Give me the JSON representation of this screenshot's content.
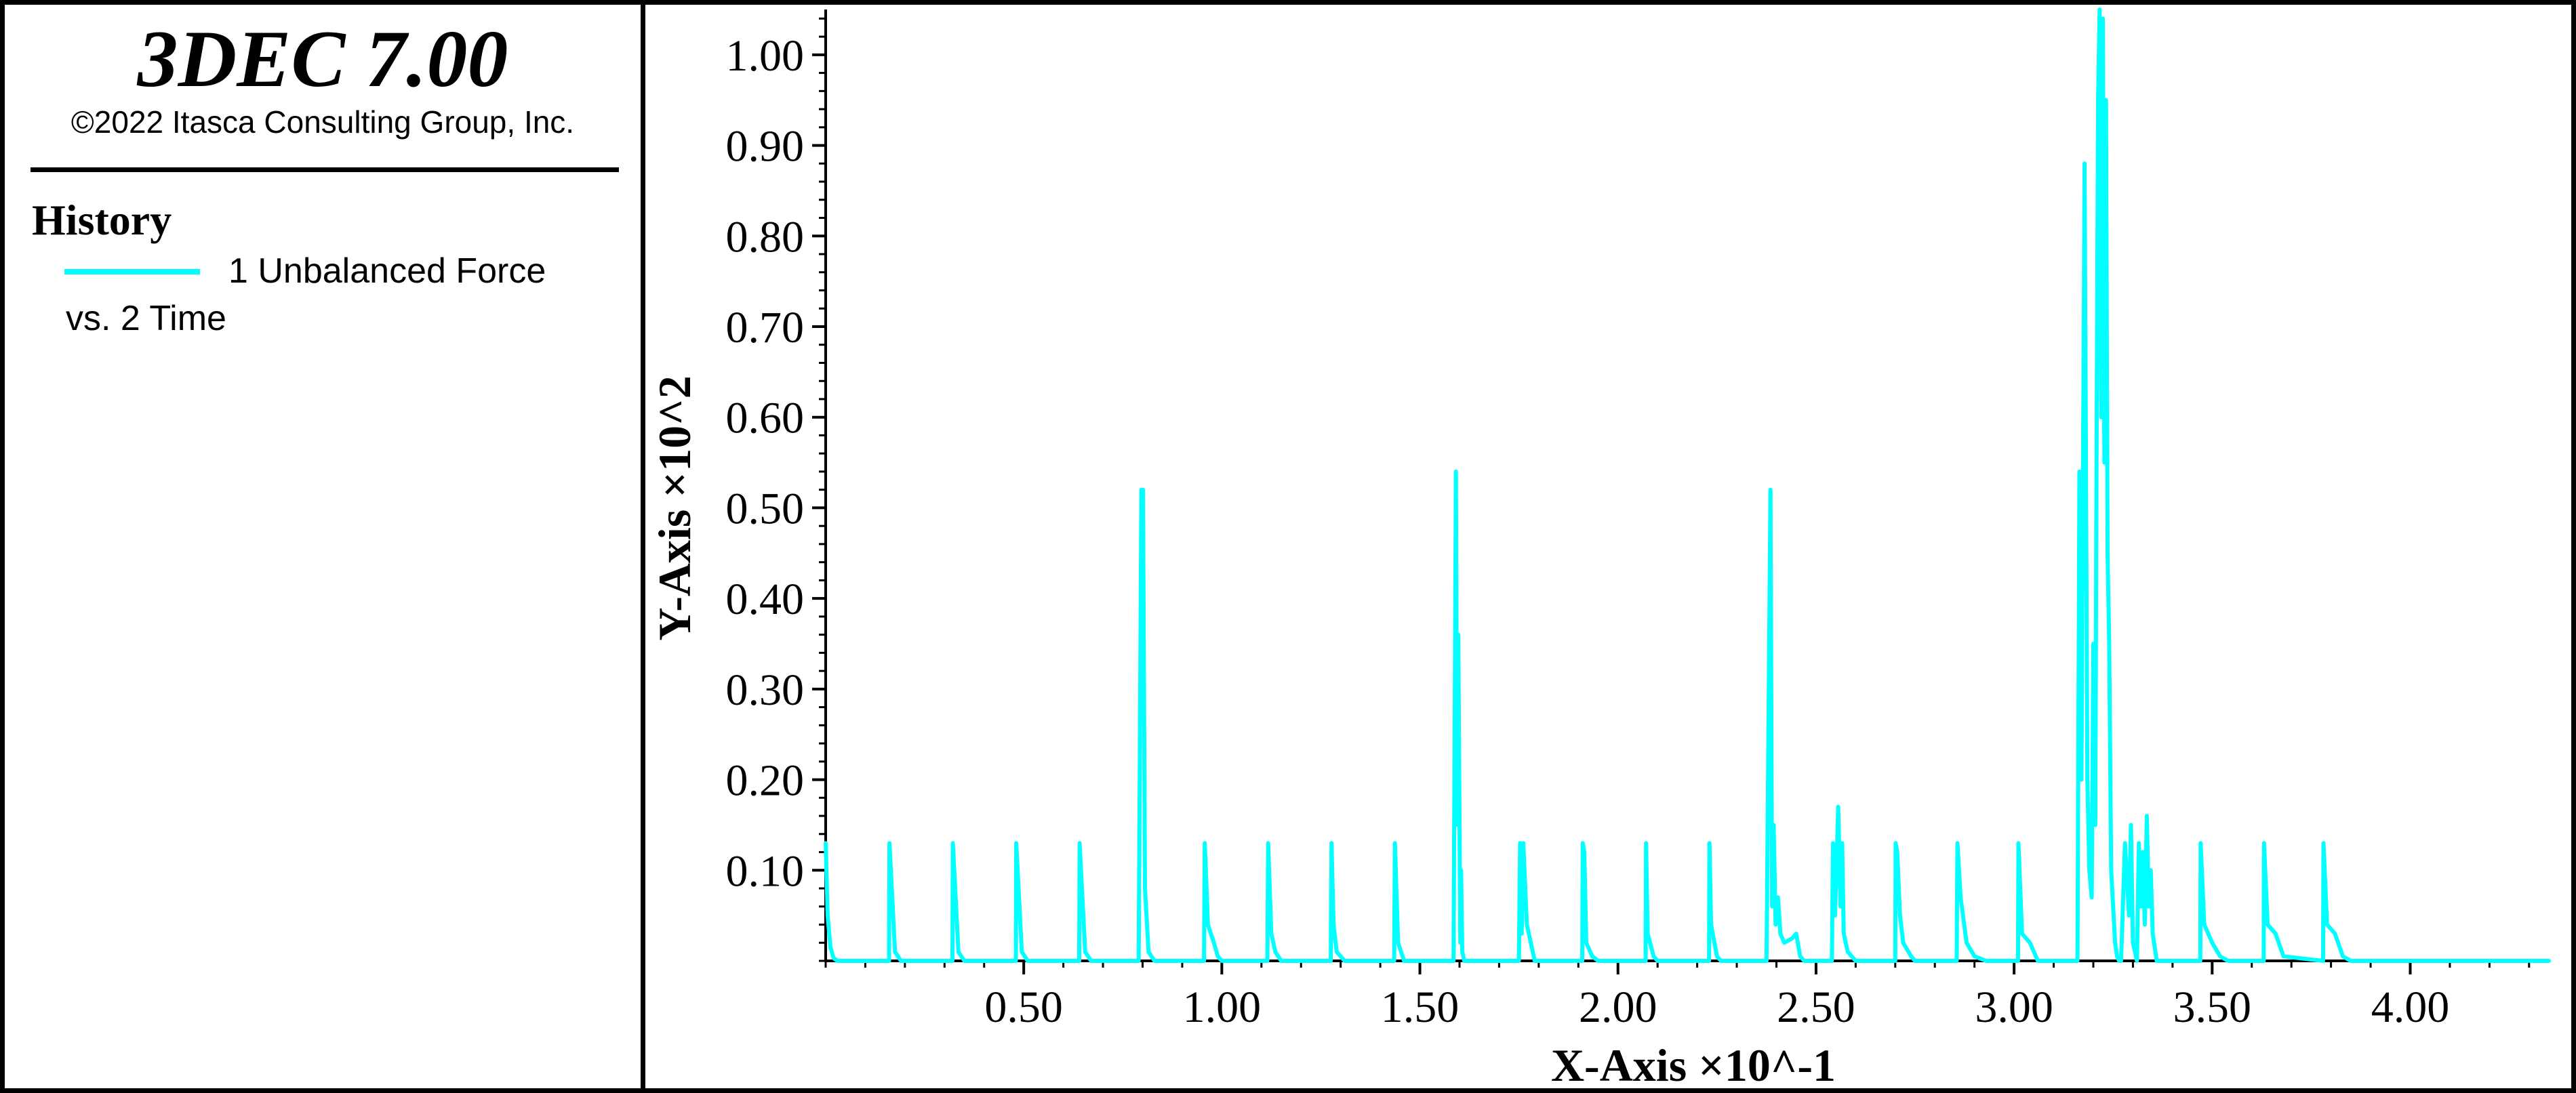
{
  "app": {
    "title": "3DEC 7.00",
    "copyright": "©2022 Itasca Consulting Group, Inc."
  },
  "legend": {
    "heading": "History",
    "entries": [
      {
        "line1": "1 Unbalanced Force",
        "line2": "vs. 2 Time",
        "color": "#00ffff"
      }
    ]
  },
  "chart_data": {
    "type": "line",
    "xlabel": "X-Axis ×10^-1",
    "ylabel": "Y-Axis ×10^2",
    "xlim": [
      0,
      4.35
    ],
    "ylim": [
      0,
      1.05
    ],
    "x_ticks": [
      "0.50",
      "1.00",
      "1.50",
      "2.00",
      "2.50",
      "3.00",
      "3.50",
      "4.00"
    ],
    "y_ticks": [
      "0.10",
      "0.20",
      "0.30",
      "0.40",
      "0.50",
      "0.60",
      "0.70",
      "0.80",
      "0.90",
      "1.00"
    ],
    "grid": false,
    "series": [
      {
        "name": "1 Unbalanced Force vs. 2 Time",
        "color": "#00ffff",
        "x": [
          0.0,
          0.005,
          0.012,
          0.02,
          0.03,
          0.16,
          0.161,
          0.175,
          0.19,
          0.32,
          0.321,
          0.335,
          0.35,
          0.48,
          0.481,
          0.495,
          0.51,
          0.64,
          0.641,
          0.655,
          0.67,
          0.79,
          0.797,
          0.801,
          0.806,
          0.815,
          0.83,
          0.955,
          0.957,
          0.965,
          0.98,
          0.99,
          1.0,
          1.115,
          1.117,
          1.125,
          1.135,
          1.15,
          1.275,
          1.277,
          1.282,
          1.29,
          1.31,
          1.435,
          1.437,
          1.445,
          1.46,
          1.585,
          1.591,
          1.594,
          1.597,
          1.602,
          1.604,
          1.607,
          1.612,
          1.618,
          1.622,
          1.626,
          1.63,
          1.64,
          1.75,
          1.753,
          1.757,
          1.761,
          1.77,
          1.79,
          1.91,
          1.911,
          1.915,
          1.92,
          1.935,
          1.95,
          2.07,
          2.071,
          2.075,
          2.09,
          2.1,
          2.23,
          2.231,
          2.235,
          2.25,
          2.26,
          2.375,
          2.385,
          2.389,
          2.393,
          2.398,
          2.404,
          2.41,
          2.42,
          2.44,
          2.45,
          2.46,
          2.47,
          2.54,
          2.543,
          2.548,
          2.556,
          2.562,
          2.566,
          2.57,
          2.58,
          2.6,
          2.62,
          2.7,
          2.701,
          2.705,
          2.712,
          2.72,
          2.74,
          2.75,
          2.855,
          2.857,
          2.865,
          2.88,
          2.9,
          2.93,
          3.01,
          3.011,
          3.02,
          3.04,
          3.06,
          3.16,
          3.165,
          3.17,
          3.178,
          3.185,
          3.19,
          3.196,
          3.2,
          3.205,
          3.208,
          3.212,
          3.216,
          3.22,
          3.224,
          3.228,
          3.232,
          3.236,
          3.24,
          3.245,
          3.25,
          3.255,
          3.26,
          3.265,
          3.27,
          3.28,
          3.29,
          3.295,
          3.3,
          3.31,
          3.315,
          3.32,
          3.325,
          3.33,
          3.335,
          3.34,
          3.345,
          3.35,
          3.36,
          3.47,
          3.471,
          3.48,
          3.5,
          3.52,
          3.54,
          3.63,
          3.631,
          3.64,
          3.66,
          3.68,
          3.78,
          3.781,
          3.79,
          3.81,
          3.83,
          3.85,
          4.0,
          4.35
        ],
        "y": [
          0.13,
          0.05,
          0.015,
          0.003,
          0.0,
          0.0,
          0.13,
          0.01,
          0.0,
          0.0,
          0.13,
          0.01,
          0.0,
          0.0,
          0.13,
          0.01,
          0.0,
          0.0,
          0.13,
          0.01,
          0.0,
          0.0,
          0.52,
          0.52,
          0.08,
          0.01,
          0.0,
          0.0,
          0.13,
          0.04,
          0.02,
          0.005,
          0.0,
          0.0,
          0.13,
          0.03,
          0.01,
          0.0,
          0.0,
          0.13,
          0.04,
          0.01,
          0.0,
          0.0,
          0.13,
          0.02,
          0.0,
          0.0,
          0.54,
          0.15,
          0.36,
          0.02,
          0.1,
          0.01,
          0.0,
          0.0,
          0.0,
          0.0,
          0.0,
          0.0,
          0.0,
          0.13,
          0.03,
          0.13,
          0.04,
          0.0,
          0.0,
          0.13,
          0.12,
          0.02,
          0.005,
          0.0,
          0.0,
          0.13,
          0.03,
          0.005,
          0.0,
          0.0,
          0.13,
          0.04,
          0.005,
          0.0,
          0.0,
          0.52,
          0.06,
          0.15,
          0.04,
          0.07,
          0.03,
          0.02,
          0.025,
          0.03,
          0.005,
          0.0,
          0.0,
          0.13,
          0.05,
          0.17,
          0.06,
          0.13,
          0.03,
          0.01,
          0.0,
          0.0,
          0.0,
          0.13,
          0.12,
          0.05,
          0.02,
          0.005,
          0.0,
          0.0,
          0.13,
          0.07,
          0.02,
          0.005,
          0.0,
          0.0,
          0.13,
          0.03,
          0.02,
          0.0,
          0.0,
          0.54,
          0.2,
          0.88,
          0.2,
          0.1,
          0.07,
          0.35,
          0.15,
          0.55,
          0.95,
          1.05,
          0.6,
          1.04,
          0.55,
          0.95,
          0.45,
          0.35,
          0.1,
          0.06,
          0.02,
          0.005,
          0.0,
          0.0,
          0.13,
          0.05,
          0.15,
          0.02,
          0.0,
          0.13,
          0.06,
          0.12,
          0.04,
          0.16,
          0.06,
          0.1,
          0.03,
          0.0,
          0.0,
          0.13,
          0.04,
          0.02,
          0.005,
          0.0,
          0.0,
          0.13,
          0.04,
          0.03,
          0.005,
          0.0,
          0.13,
          0.04,
          0.03,
          0.005,
          0.0,
          0.0,
          0.0
        ]
      }
    ]
  }
}
